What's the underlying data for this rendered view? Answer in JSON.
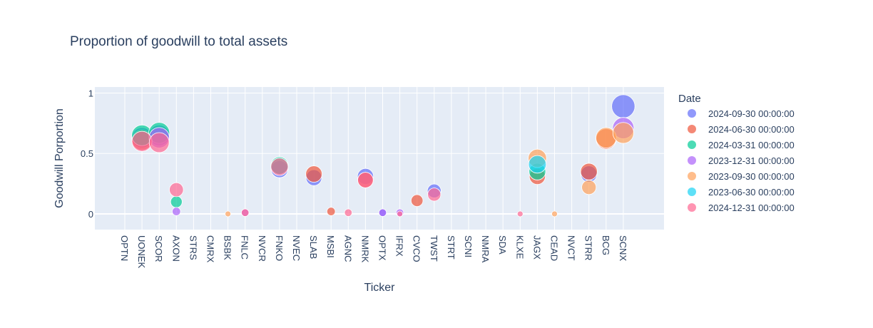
{
  "chart_data": {
    "type": "scatter",
    "title": "Proportion of goodwill to total assets",
    "xlabel": "Ticker",
    "ylabel": "Goodwill Porportion",
    "categories": [
      "OPTN",
      "UONEK",
      "SCOR",
      "AXON",
      "STRS",
      "CMRX",
      "BSBK",
      "FNLC",
      "NVCR",
      "FNKO",
      "NVEC",
      "SLAB",
      "MSBI",
      "AGNC",
      "NMRK",
      "OPTX",
      "IFRX",
      "CVCO",
      "TWST",
      "STRT",
      "SCNI",
      "NMRA",
      "SDA",
      "KLXE",
      "JAGX",
      "CEAD",
      "NVCT",
      "STRR",
      "BCG",
      "SCNX"
    ],
    "y_ticks": [
      0,
      0.5,
      1
    ],
    "y_tick_labels": [
      "0",
      "0.5",
      "1"
    ],
    "ylim": [
      -0.13,
      1.05
    ],
    "grid": true,
    "legend": {
      "title": "Date",
      "placement": "right"
    },
    "series": [
      {
        "name": "2024-09-30 00:00:00",
        "color": "#636efa",
        "points": [
          [
            "UONEK",
            0.63
          ],
          [
            "SCOR",
            0.65
          ],
          [
            "FNKO",
            0.37
          ],
          [
            "SLAB",
            0.3
          ],
          [
            "NMRK",
            0.31
          ],
          [
            "OPTX",
            0.01
          ],
          [
            "TWST",
            0.19
          ],
          [
            "STRR",
            0.33
          ],
          [
            "SCNX",
            0.89
          ]
        ]
      },
      {
        "name": "2024-06-30 00:00:00",
        "color": "#EF553B",
        "points": [
          [
            "UONEK",
            0.61
          ],
          [
            "SLAB",
            0.33
          ],
          [
            "MSBI",
            0.02
          ],
          [
            "NMRK",
            0.28
          ],
          [
            "CVCO",
            0.11
          ],
          [
            "JAGX",
            0.31
          ],
          [
            "STRR",
            0.35
          ],
          [
            "BCG",
            0.62
          ]
        ]
      },
      {
        "name": "2024-03-31 00:00:00",
        "color": "#00cc96",
        "points": [
          [
            "UONEK",
            0.65
          ],
          [
            "SCOR",
            0.67
          ],
          [
            "AXON",
            0.1
          ],
          [
            "FNKO",
            0.4
          ],
          [
            "JAGX",
            0.35
          ]
        ]
      },
      {
        "name": "2023-12-31 00:00:00",
        "color": "#ab63fa",
        "points": [
          [
            "SCOR",
            0.63
          ],
          [
            "AXON",
            0.02
          ],
          [
            "FNLC",
            0.01
          ],
          [
            "OPTX",
            0.01
          ],
          [
            "IFRX",
            0.01
          ],
          [
            "SCNX",
            0.71
          ]
        ]
      },
      {
        "name": "2023-09-30 00:00:00",
        "color": "#FFA15A",
        "points": [
          [
            "BSBK",
            0.0
          ],
          [
            "JAGX",
            0.46
          ],
          [
            "CEAD",
            0.0
          ],
          [
            "STRR",
            0.22
          ],
          [
            "BCG",
            0.63
          ],
          [
            "SCNX",
            0.67
          ]
        ]
      },
      {
        "name": "2023-06-30 00:00:00",
        "color": "#19d3f3",
        "points": [
          [
            "JAGX",
            0.41
          ]
        ]
      },
      {
        "name": "2024-12-31 00:00:00",
        "color": "#FF6692",
        "points": [
          [
            "UONEK",
            0.6
          ],
          [
            "SCOR",
            0.59
          ],
          [
            "AXON",
            0.2
          ],
          [
            "FNLC",
            0.01
          ],
          [
            "FNKO",
            0.39
          ],
          [
            "AGNC",
            0.01
          ],
          [
            "NMRK",
            0.28
          ],
          [
            "IFRX",
            0.0
          ],
          [
            "TWST",
            0.16
          ],
          [
            "KLXE",
            0.0
          ]
        ]
      }
    ]
  }
}
